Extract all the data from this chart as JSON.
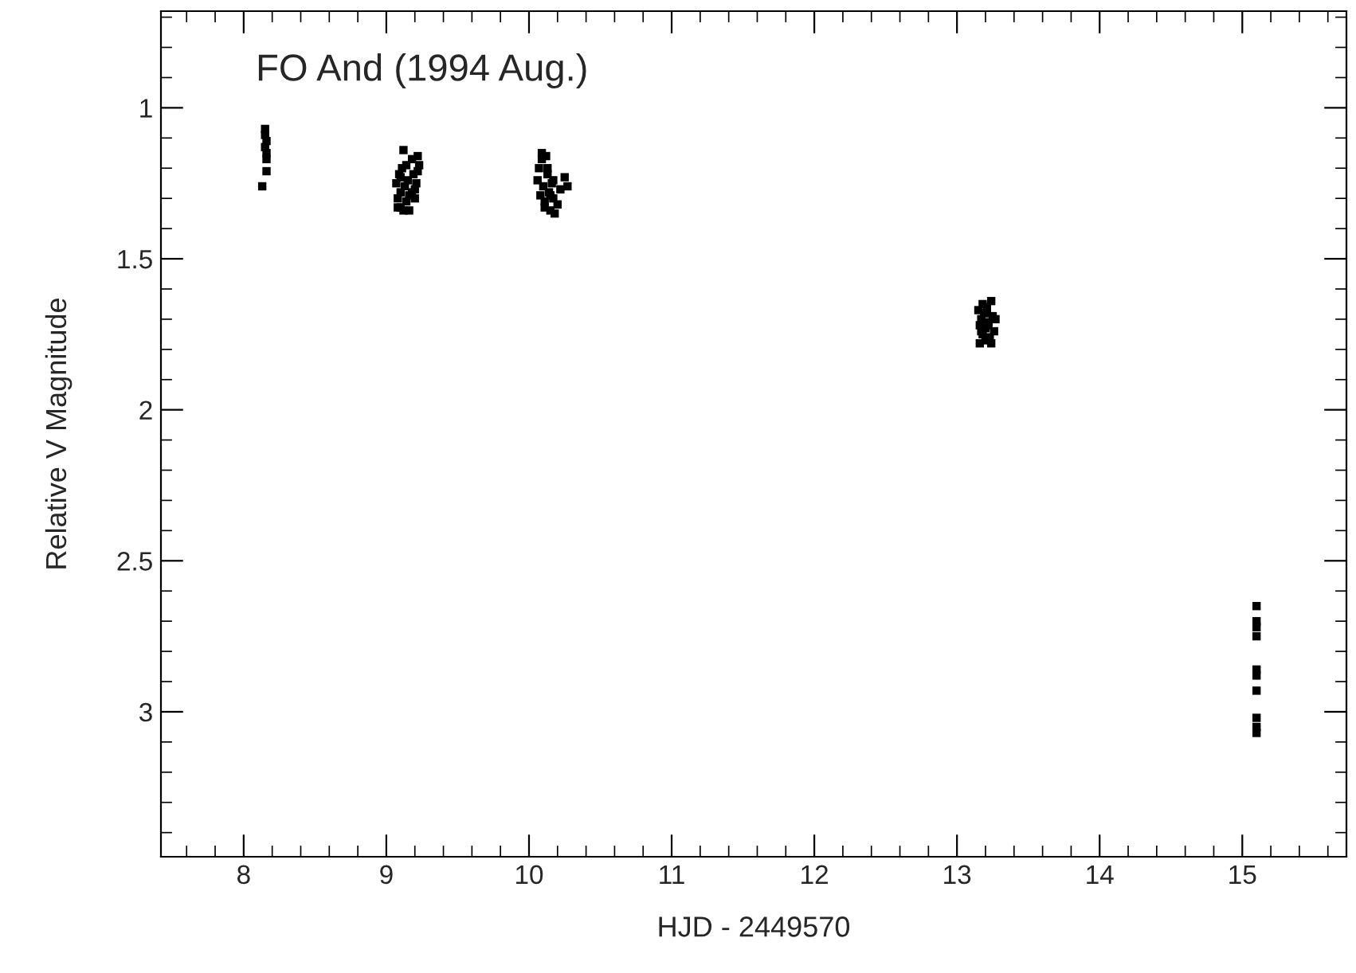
{
  "chart_data": {
    "type": "scatter",
    "marker": "square",
    "title": "FO And (1994 Aug.)",
    "xlabel": "HJD - 2449570",
    "ylabel": "Relative V Magnitude",
    "xlim": [
      7.42,
      15.73
    ],
    "xticks": [
      8,
      9,
      10,
      11,
      12,
      13,
      14,
      15
    ],
    "ylim": [
      3.48,
      0.68
    ],
    "yticks": [
      1,
      1.5,
      2,
      2.5,
      3
    ],
    "grid": false,
    "legend": false,
    "series": [
      {
        "color": "#000000",
        "x": [
          8.15,
          8.15,
          8.16,
          8.15,
          8.16,
          8.16,
          8.16,
          8.13,
          9.07,
          9.08,
          9.09,
          9.1,
          9.1,
          9.11,
          9.12,
          9.13,
          9.14,
          9.15,
          9.16,
          9.18,
          9.19,
          9.2,
          9.21,
          9.22,
          9.23,
          9.08,
          9.12,
          9.16,
          9.2,
          9.1,
          9.14,
          9.18,
          9.22,
          10.06,
          10.07,
          10.08,
          10.09,
          10.1,
          10.11,
          10.12,
          10.13,
          10.14,
          10.15,
          10.16,
          10.17,
          10.18,
          10.2,
          10.22,
          10.25,
          10.27,
          10.09,
          10.13,
          10.17,
          10.11,
          10.15,
          13.15,
          13.16,
          13.17,
          13.18,
          13.19,
          13.2,
          13.21,
          13.22,
          13.23,
          13.24,
          13.25,
          13.26,
          13.27,
          13.16,
          13.18,
          13.2,
          13.22,
          13.24,
          13.17,
          13.21,
          15.1,
          15.1,
          15.1,
          15.1,
          15.1,
          15.1,
          15.1,
          15.1,
          15.1,
          15.1
        ],
        "values": [
          1.07,
          1.09,
          1.11,
          1.13,
          1.15,
          1.17,
          1.21,
          1.26,
          1.25,
          1.3,
          1.22,
          1.28,
          1.33,
          1.2,
          1.14,
          1.26,
          1.31,
          1.24,
          1.29,
          1.17,
          1.22,
          1.27,
          1.25,
          1.21,
          1.19,
          1.33,
          1.34,
          1.34,
          1.3,
          1.23,
          1.19,
          1.28,
          1.16,
          1.24,
          1.2,
          1.29,
          1.17,
          1.26,
          1.31,
          1.16,
          1.22,
          1.28,
          1.34,
          1.25,
          1.3,
          1.35,
          1.32,
          1.27,
          1.23,
          1.26,
          1.15,
          1.2,
          1.24,
          1.33,
          1.29,
          1.67,
          1.72,
          1.7,
          1.75,
          1.68,
          1.73,
          1.66,
          1.71,
          1.76,
          1.64,
          1.69,
          1.74,
          1.7,
          1.78,
          1.65,
          1.77,
          1.72,
          1.78,
          1.74,
          1.68,
          2.65,
          2.7,
          2.72,
          2.75,
          2.86,
          2.88,
          2.93,
          3.02,
          3.05,
          3.07
        ]
      }
    ]
  }
}
